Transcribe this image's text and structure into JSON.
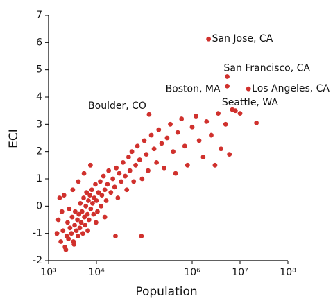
{
  "chart_data": {
    "type": "scatter",
    "x_label": "Population",
    "y_label": "ECI",
    "log_x": true,
    "color": "#d0312d",
    "xlim": [
      1000,
      100000000
    ],
    "xticks": [
      {
        "value": 1000,
        "label": "10³"
      },
      {
        "value": 10000,
        "label": "10⁴"
      },
      {
        "value": 1000000,
        "label": "10⁶"
      },
      {
        "value": 10000000,
        "label": "10⁷"
      },
      {
        "value": 100000000,
        "label": "10⁸"
      }
    ],
    "ylim": [
      -2,
      7
    ],
    "yticks": [
      -2,
      -1,
      0,
      1,
      2,
      3,
      4,
      5,
      6,
      7
    ],
    "x": [
      1800,
      2000,
      2200,
      2400,
      2500,
      2600,
      2800,
      3000,
      3100,
      3300,
      3500,
      3600,
      3800,
      4000,
      4100,
      4300,
      4500,
      4600,
      4800,
      5000,
      5200,
      5400,
      5600,
      5800,
      6000,
      6200,
      6500,
      6800,
      7000,
      7300,
      7600,
      8000,
      8300,
      8700,
      9000,
      9500,
      10000,
      10500,
      11000,
      12000,
      12500,
      13000,
      14000,
      15000,
      16000,
      17000,
      18000,
      20000,
      22000,
      24000,
      26000,
      28000,
      30000,
      33000,
      36000,
      40000,
      43000,
      47000,
      50000,
      55000,
      60000,
      66000,
      72000,
      80000,
      90000,
      100000,
      110000,
      120000,
      140000,
      160000,
      180000,
      200000,
      230000,
      260000,
      300000,
      350000,
      400000,
      450000,
      500000,
      600000,
      700000,
      800000,
      1000000,
      1200000,
      1400000,
      1700000,
      2000000,
      2500000,
      3000000,
      3500000,
      4000000,
      5000000,
      6000000,
      8000000,
      10000000,
      1500,
      1600,
      1700,
      1900,
      2100,
      2300,
      3200,
      4200,
      5500,
      7500,
      2700,
      3400,
      6600,
      9800,
      15000,
      25000,
      87000,
      22000000
    ],
    "y": [
      -1.3,
      -0.9,
      -1.5,
      -1.1,
      -0.6,
      -1.2,
      -0.8,
      -1.0,
      -0.4,
      -1.3,
      -0.7,
      -0.2,
      -0.9,
      -0.5,
      -1.1,
      -0.3,
      -0.8,
      0.1,
      -0.6,
      -0.2,
      -1.0,
      0.3,
      -0.4,
      -0.7,
      0.0,
      0.5,
      -0.3,
      0.2,
      -0.5,
      0.4,
      -0.1,
      0.6,
      0.1,
      -0.3,
      0.3,
      0.8,
      0.2,
      -0.2,
      0.5,
      0.9,
      0.0,
      0.4,
      1.1,
      0.6,
      0.2,
      0.8,
      1.3,
      0.5,
      1.0,
      0.7,
      1.4,
      0.3,
      1.2,
      0.9,
      1.6,
      1.1,
      0.6,
      1.8,
      1.3,
      2.0,
      0.9,
      1.5,
      2.2,
      1.7,
      1.0,
      2.4,
      1.9,
      1.3,
      2.6,
      2.1,
      1.6,
      2.8,
      2.3,
      1.4,
      2.5,
      3.0,
      2.0,
      1.2,
      2.7,
      3.2,
      2.2,
      1.5,
      2.9,
      3.3,
      2.4,
      1.8,
      3.1,
      2.6,
      1.5,
      3.4,
      2.1,
      3.0,
      1.9,
      3.5,
      3.4,
      -1.0,
      -0.5,
      0.3,
      -0.2,
      0.4,
      -1.6,
      0.6,
      0.9,
      1.2,
      1.5,
      -0.1,
      -1.4,
      -0.9,
      -0.6,
      -0.4,
      -1.1,
      -1.1,
      3.05
    ],
    "labeled_points": [
      {
        "label": "San Jose, CA",
        "x": 2200000,
        "y": 6.13
      },
      {
        "label": "San Francisco, CA",
        "x": 5400000,
        "y": 4.75
      },
      {
        "label": "Boston, MA",
        "x": 5400000,
        "y": 4.4
      },
      {
        "label": "Los Angeles, CA",
        "x": 15000000,
        "y": 4.3
      },
      {
        "label": "Seattle, WA",
        "x": 6900000,
        "y": 3.54
      },
      {
        "label": "Boulder, CO",
        "x": 126000,
        "y": 3.36
      }
    ]
  }
}
